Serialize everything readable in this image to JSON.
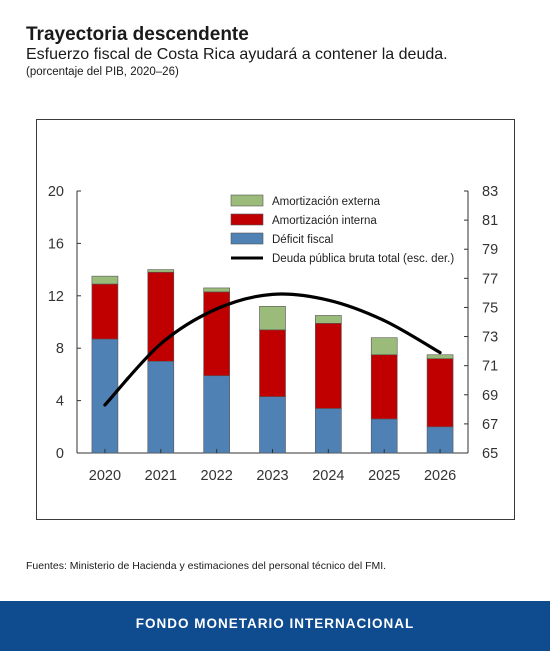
{
  "header": {
    "title": "Trayectoria descendente",
    "subtitle": "Esfuerzo fiscal de Costa Rica ayudará a contener la deuda.",
    "note": "(porcentaje del PIB, 2020–26)"
  },
  "footer": {
    "source": "Fuentes: Ministerio de Hacienda y estimaciones del personal técnico del FMI.",
    "brand": "FONDO MONETARIO INTERNACIONAL"
  },
  "colors": {
    "deficit": "#4f81b5",
    "amort_interna": "#c00000",
    "amort_externa": "#9bbb7a",
    "debt_line": "#000000",
    "footer_bg": "#0e4b8f"
  },
  "chart_data": {
    "type": "bar",
    "stacked": true,
    "categories": [
      "2020",
      "2021",
      "2022",
      "2023",
      "2024",
      "2025",
      "2026"
    ],
    "series": [
      {
        "name": "Déficit fiscal",
        "axis": "left",
        "values": [
          8.7,
          7.0,
          5.9,
          4.3,
          3.4,
          2.6,
          2.0
        ]
      },
      {
        "name": "Amortización interna",
        "axis": "left",
        "values": [
          4.2,
          6.8,
          6.4,
          5.1,
          6.5,
          4.9,
          5.2
        ]
      },
      {
        "name": "Amortización externa",
        "axis": "left",
        "values": [
          0.6,
          0.2,
          0.3,
          1.8,
          0.6,
          1.3,
          0.3
        ]
      },
      {
        "name": "Deuda pública bruta total (esc. der.)",
        "type": "line",
        "axis": "right",
        "values": [
          68.3,
          72.5,
          74.9,
          75.9,
          75.5,
          74.1,
          71.9
        ]
      }
    ],
    "y_left": {
      "ylim": [
        0,
        20
      ],
      "ticks": [
        "0",
        "4",
        "8",
        "12",
        "16",
        "20"
      ]
    },
    "y_right": {
      "ylim": [
        65,
        83
      ],
      "ticks": [
        "65",
        "67",
        "69",
        "71",
        "73",
        "75",
        "77",
        "79",
        "81",
        "83"
      ]
    },
    "legend": {
      "position": "top-right",
      "entries": [
        "Amortización externa",
        "Amortización interna",
        "Déficit fiscal",
        "Deuda pública bruta total (esc. der.)"
      ]
    },
    "grid": false
  }
}
